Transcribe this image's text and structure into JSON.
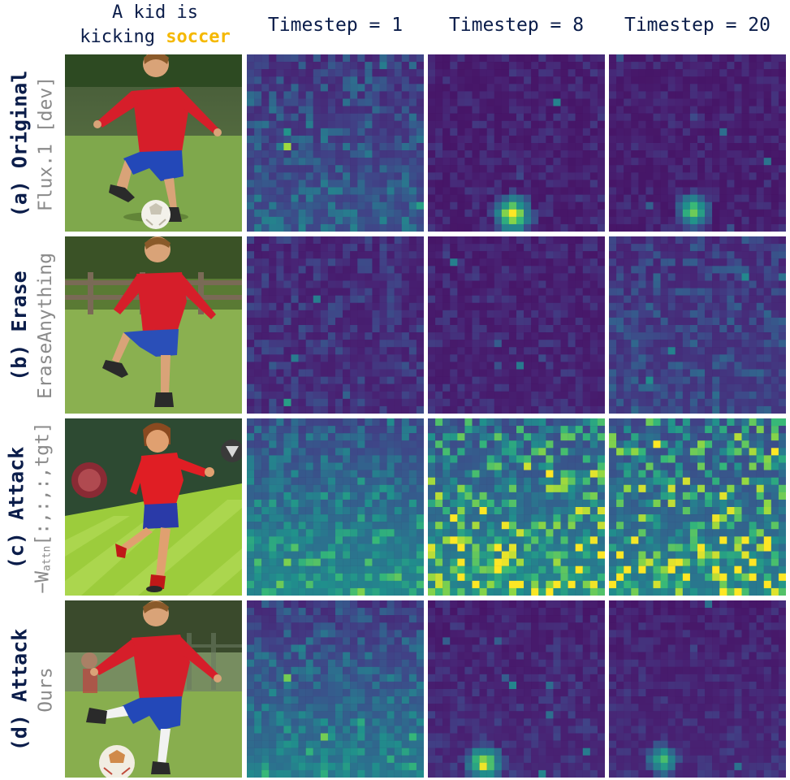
{
  "header": {
    "prompt_line1": "A kid is",
    "prompt_line2_prefix": "kicking ",
    "prompt_highlight": "soccer",
    "highlight_color": "#f5b800",
    "timesteps": [
      "Timestep = 1",
      "Timestep = 8",
      "Timestep = 20"
    ]
  },
  "rows": [
    {
      "label": "(a) Original",
      "sublabel": "Flux.1 [dev]"
    },
    {
      "label": "(b) Erase",
      "sublabel": "EraseAnything"
    },
    {
      "label": "(c) Attack",
      "sublabel_prefix": "−W",
      "sublabel_sub": "attn",
      "sublabel_suffix": "[:,:,:,tgt]"
    },
    {
      "label": "(d) Attack",
      "sublabel": "Ours"
    }
  ],
  "colormap": "viridis",
  "heatmaps": [
    [
      {
        "base": 0.12,
        "noise": 0.32,
        "gradient": 0.15,
        "blob": null
      },
      {
        "base": 0.08,
        "noise": 0.14,
        "gradient": 0.0,
        "blob": [
          0.48,
          0.9,
          0.13,
          0.85
        ]
      },
      {
        "base": 0.08,
        "noise": 0.12,
        "gradient": 0.0,
        "blob": [
          0.48,
          0.88,
          0.11,
          0.75
        ]
      }
    ],
    [
      {
        "base": 0.1,
        "noise": 0.2,
        "gradient": 0.02,
        "blob": null
      },
      {
        "base": 0.08,
        "noise": 0.14,
        "gradient": 0.02,
        "blob": null
      },
      {
        "base": 0.12,
        "noise": 0.26,
        "gradient": 0.08,
        "blob": null
      }
    ],
    [
      {
        "base": 0.22,
        "noise": 0.3,
        "gradient": 0.35,
        "blob": null
      },
      {
        "base": 0.26,
        "noise": 0.55,
        "gradient": 0.3,
        "blob": null
      },
      {
        "base": 0.24,
        "noise": 0.62,
        "gradient": 0.28,
        "blob": null
      }
    ],
    [
      {
        "base": 0.14,
        "noise": 0.28,
        "gradient": 0.35,
        "blob": null
      },
      {
        "base": 0.08,
        "noise": 0.14,
        "gradient": 0.05,
        "blob": [
          0.32,
          0.92,
          0.12,
          0.75
        ]
      },
      {
        "base": 0.08,
        "noise": 0.12,
        "gradient": 0.05,
        "blob": [
          0.3,
          0.9,
          0.1,
          0.6
        ]
      }
    ]
  ]
}
